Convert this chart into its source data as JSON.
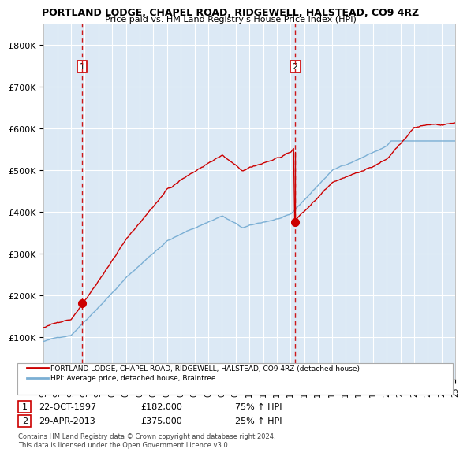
{
  "title1": "PORTLAND LODGE, CHAPEL ROAD, RIDGEWELL, HALSTEAD, CO9 4RZ",
  "title2": "Price paid vs. HM Land Registry's House Price Index (HPI)",
  "legend_line1": "PORTLAND LODGE, CHAPEL ROAD, RIDGEWELL, HALSTEAD, CO9 4RZ (detached house)",
  "legend_line2": "HPI: Average price, detached house, Braintree",
  "footnote": "Contains HM Land Registry data © Crown copyright and database right 2024.\nThis data is licensed under the Open Government Licence v3.0.",
  "table_row1": [
    "1",
    "22-OCT-1997",
    "£182,000",
    "75% ↑ HPI"
  ],
  "table_row2": [
    "2",
    "29-APR-2013",
    "£375,000",
    "25% ↑ HPI"
  ],
  "bg_color": "#dce9f5",
  "red_color": "#cc0000",
  "blue_color": "#7bafd4",
  "grid_color": "#ffffff",
  "ylim": [
    0,
    850000
  ],
  "yticks": [
    0,
    100000,
    200000,
    300000,
    400000,
    500000,
    600000,
    700000,
    800000
  ],
  "marker1_year": 1997.8,
  "marker1_val": 182000,
  "marker2_year": 2013.33,
  "marker2_val": 375000,
  "vline1_year": 1997.8,
  "vline2_year": 2013.33,
  "start_year": 1995,
  "end_year": 2025
}
